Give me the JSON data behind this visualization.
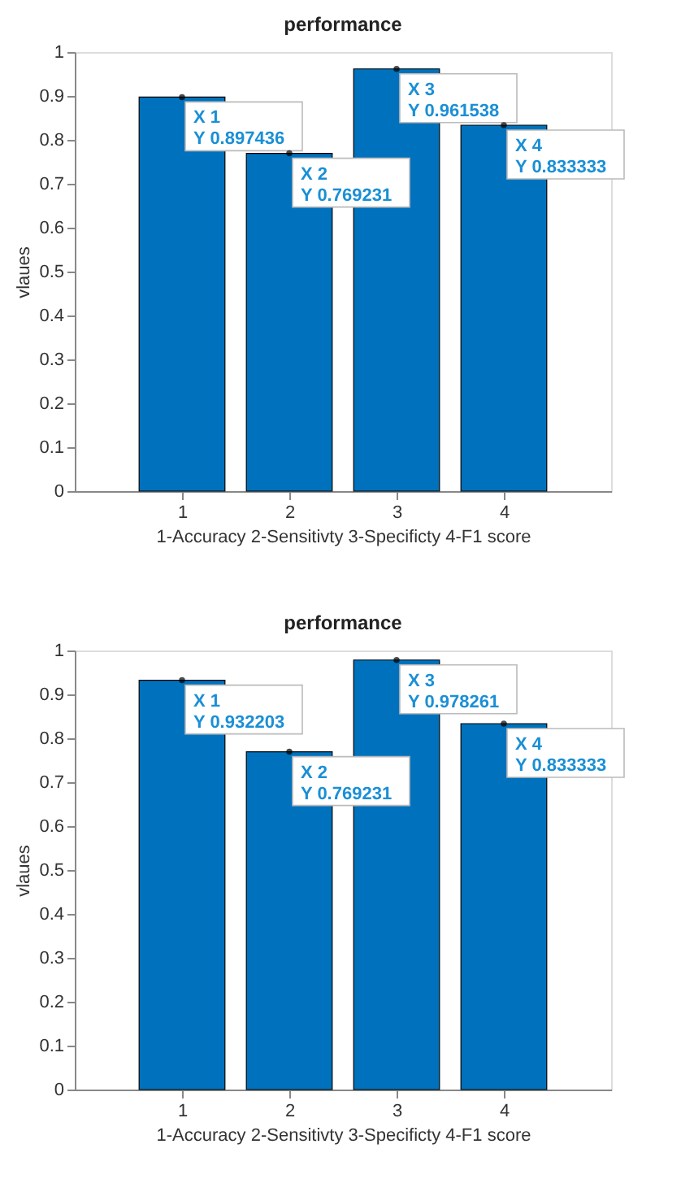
{
  "chart_data": [
    {
      "type": "bar",
      "title": "performance",
      "xlabel": "1-Accuracy  2-Sensitivty  3-Specificty  4-F1 score",
      "ylabel": "vlaues",
      "x": [
        1,
        2,
        3,
        4
      ],
      "values": [
        0.897436,
        0.769231,
        0.961538,
        0.833333
      ],
      "color": "#0072bd",
      "xlim": [
        0,
        5
      ],
      "xticks": [
        1,
        2,
        3,
        4
      ],
      "ylim": [
        0,
        1
      ],
      "yticks": [
        0,
        0.1,
        0.2,
        0.3,
        0.4,
        0.5,
        0.6,
        0.7,
        0.8,
        0.9,
        1
      ],
      "grid": false,
      "annotations": [
        {
          "text": "X 1\nY 0.897436",
          "x": 1,
          "y": 0.897436
        },
        {
          "text": "X 2\nY 0.769231",
          "x": 2,
          "y": 0.769231
        },
        {
          "text": "X 3\nY 0.961538",
          "x": 3,
          "y": 0.961538
        },
        {
          "text": "X 4\nY 0.833333",
          "x": 4,
          "y": 0.833333
        }
      ]
    },
    {
      "type": "bar",
      "title": "performance",
      "xlabel": "1-Accuracy  2-Sensitivty  3-Specificty  4-F1 score",
      "ylabel": "vlaues",
      "x": [
        1,
        2,
        3,
        4
      ],
      "values": [
        0.932203,
        0.769231,
        0.978261,
        0.833333
      ],
      "color": "#0072bd",
      "xlim": [
        0,
        5
      ],
      "xticks": [
        1,
        2,
        3,
        4
      ],
      "ylim": [
        0,
        1
      ],
      "yticks": [
        0,
        0.1,
        0.2,
        0.3,
        0.4,
        0.5,
        0.6,
        0.7,
        0.8,
        0.9,
        1
      ],
      "grid": false,
      "annotations": [
        {
          "text": "X 1\nY 0.932203",
          "x": 1,
          "y": 0.932203
        },
        {
          "text": "X 2\nY 0.769231",
          "x": 2,
          "y": 0.769231
        },
        {
          "text": "X 3\nY 0.978261",
          "x": 3,
          "y": 0.978261
        },
        {
          "text": "X 4\nY 0.833333",
          "x": 4,
          "y": 0.833333
        }
      ]
    }
  ]
}
